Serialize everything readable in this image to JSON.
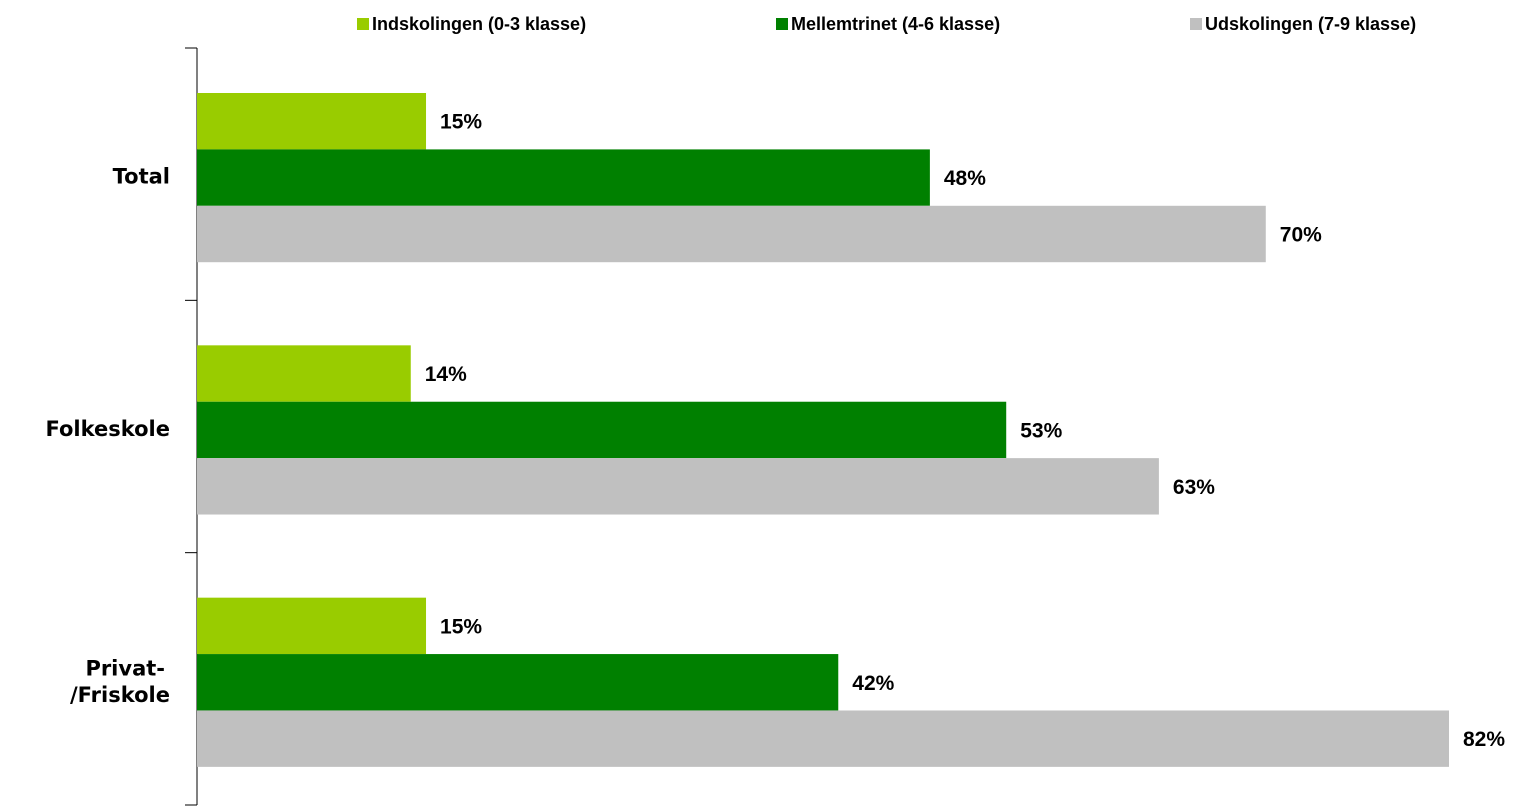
{
  "chart_data": {
    "type": "bar",
    "orientation": "horizontal",
    "categories": [
      "Total",
      "Folkeskole",
      "Privat-/Friskole"
    ],
    "series": [
      {
        "name": "Indskolingen (0-3 klasse)",
        "color": "#99cc00",
        "values": [
          15,
          14,
          15
        ],
        "value_labels": [
          "15%",
          "14%",
          "15%"
        ]
      },
      {
        "name": "Mellemtrinet (4-6 klasse)",
        "color": "#008000",
        "values": [
          48,
          53,
          42
        ],
        "value_labels": [
          "48%",
          "53%",
          "42%"
        ]
      },
      {
        "name": "Udskolingen (7-9 klasse)",
        "color": "#c0c0c0",
        "values": [
          70,
          63,
          82
        ],
        "value_labels": [
          "70%",
          "63%",
          "82%"
        ]
      }
    ],
    "legend": "top"
  }
}
